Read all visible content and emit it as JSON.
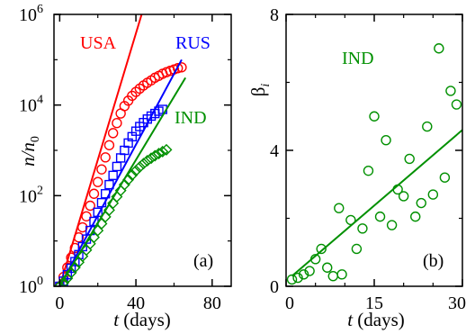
{
  "chart_data": [
    {
      "panel": "(a)",
      "type": "scatter",
      "ylabel_html": "n/n<sub>0</sub>",
      "ylabel_parts": {
        "main": "n/n",
        "sub": "0"
      },
      "xlabel": {
        "var": "t",
        "rest": " (days)"
      },
      "yscale": "log",
      "xlim": [
        -3,
        90
      ],
      "ylim": [
        1,
        1000000
      ],
      "xticks": [
        "0",
        "40",
        "80"
      ],
      "xtick_values": [
        0,
        40,
        80
      ],
      "yticks": [
        {
          "value": 1,
          "base": "10",
          "exp": "0"
        },
        {
          "value": 100,
          "base": "10",
          "exp": "2"
        },
        {
          "value": 10000,
          "base": "10",
          "exp": "4"
        },
        {
          "value": 1000000,
          "base": "10",
          "exp": "6"
        }
      ],
      "series": [
        {
          "name": "USA",
          "color": "#ff0000",
          "marker": "circle",
          "x": [
            0,
            2,
            4,
            6,
            8,
            10,
            12,
            14,
            16,
            18,
            20,
            22,
            24,
            26,
            28,
            30,
            32,
            34,
            36,
            38,
            40,
            42,
            44,
            46,
            48,
            50,
            52,
            54,
            56,
            58,
            60,
            62,
            64
          ],
          "y": [
            1,
            1.6,
            2.6,
            4.3,
            7,
            12,
            20,
            35,
            60,
            110,
            200,
            380,
            700,
            1300,
            2400,
            4000,
            6500,
            9500,
            12500,
            16000,
            19500,
            23000,
            27000,
            31000,
            35000,
            40000,
            44000,
            49000,
            53000,
            57000,
            61000,
            65000,
            68000
          ],
          "fit": {
            "x": [
              0,
              43
            ],
            "y": [
              1,
              1000000
            ]
          }
        },
        {
          "name": "RUS",
          "color": "#0000ff",
          "marker": "square",
          "x": [
            0,
            2,
            4,
            6,
            8,
            10,
            12,
            14,
            16,
            18,
            20,
            22,
            24,
            26,
            28,
            30,
            32,
            34,
            36,
            38,
            40,
            42,
            44,
            46,
            48,
            50,
            52,
            54
          ],
          "y": [
            1,
            1.3,
            1.8,
            2.5,
            3.5,
            5,
            7.5,
            11,
            17,
            27,
            43,
            70,
            110,
            175,
            280,
            440,
            680,
            1000,
            1450,
            2000,
            2650,
            3350,
            4100,
            4900,
            5700,
            6500,
            7300,
            8000
          ],
          "fit": {
            "x": [
              0,
              64
            ],
            "y": [
              1,
              100000
            ]
          }
        },
        {
          "name": "IND",
          "color": "#009000",
          "marker": "diamond",
          "x": [
            0,
            2,
            4,
            6,
            8,
            10,
            12,
            14,
            16,
            18,
            20,
            22,
            24,
            26,
            28,
            30,
            32,
            34,
            36,
            38,
            40,
            42,
            44,
            46,
            48,
            50,
            52,
            54,
            56
          ],
          "y": [
            1,
            1.2,
            1.5,
            2,
            2.6,
            3.4,
            4.6,
            6.3,
            8.7,
            12,
            17,
            24,
            34,
            48,
            68,
            95,
            130,
            175,
            225,
            285,
            355,
            430,
            510,
            590,
            670,
            760,
            850,
            940,
            1030
          ],
          "fit": {
            "x": [
              0,
              66
            ],
            "y": [
              1,
              40000
            ]
          }
        }
      ]
    },
    {
      "panel": "(b)",
      "type": "scatter",
      "ylabel_parts": {
        "main": "β",
        "sub": "i"
      },
      "xlabel": {
        "var": "t",
        "rest": " (days)"
      },
      "xlim": [
        0,
        30
      ],
      "ylim": [
        0,
        8
      ],
      "xticks": [
        "0",
        "15",
        "30"
      ],
      "xtick_values": [
        0,
        15,
        30
      ],
      "yticks": [
        "0",
        "4",
        "8"
      ],
      "ytick_values": [
        0,
        4,
        8
      ],
      "series": [
        {
          "name": "IND",
          "color": "#009000",
          "marker": "circle",
          "x": [
            1,
            2,
            3,
            4,
            5,
            6,
            7,
            8,
            9,
            9.5,
            11,
            12,
            13,
            14,
            15,
            16,
            17,
            18,
            19,
            20,
            21,
            22,
            23,
            24,
            25,
            26,
            27,
            28,
            29
          ],
          "y": [
            0.2,
            0.25,
            0.35,
            0.45,
            0.8,
            1.1,
            0.55,
            0.3,
            2.3,
            0.35,
            1.95,
            1.1,
            1.7,
            3.4,
            5,
            2.05,
            4.3,
            1.8,
            2.85,
            2.65,
            3.75,
            2.05,
            2.45,
            4.7,
            2.7,
            7,
            3.2,
            5.75,
            5.35
          ],
          "fit": {
            "x": [
              1,
              30
            ],
            "y": [
              0.3,
              4.6
            ]
          }
        }
      ]
    }
  ]
}
